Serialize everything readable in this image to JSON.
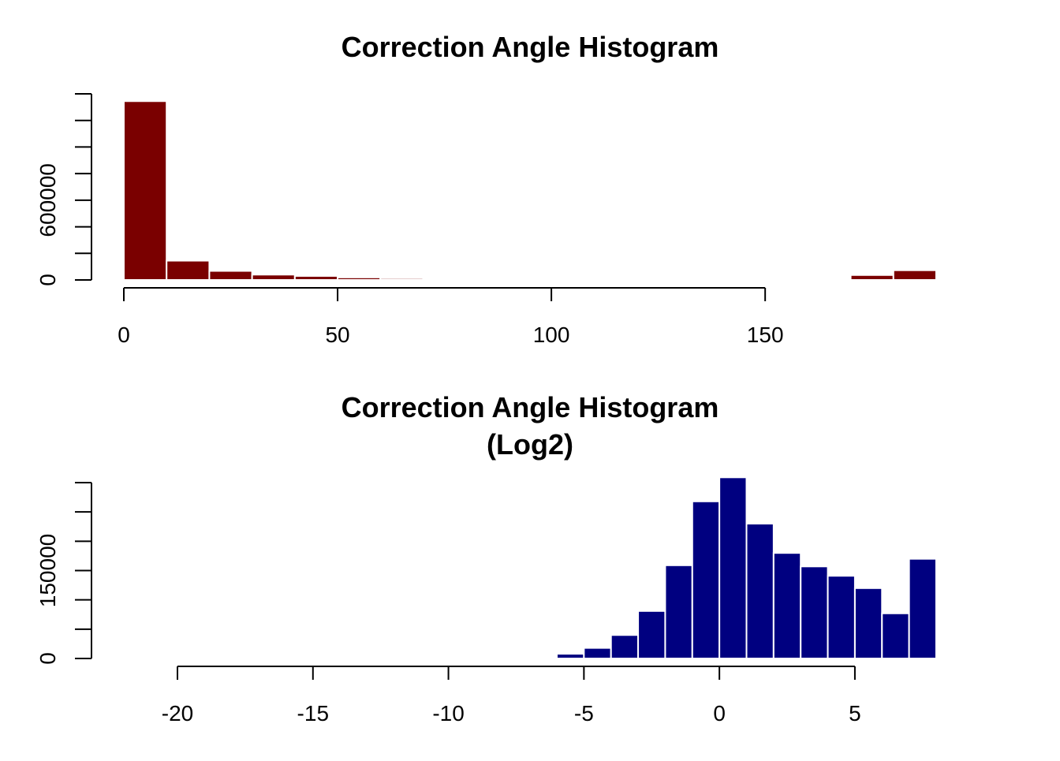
{
  "chart_data": [
    {
      "type": "bar",
      "title": "Correction Angle Histogram",
      "xlabel": "",
      "ylabel": "",
      "bar_color": "#7a0000",
      "bin_edges": [
        0,
        10,
        20,
        30,
        40,
        50,
        60,
        70,
        80,
        90,
        100,
        110,
        120,
        130,
        140,
        150,
        160,
        170,
        180,
        190
      ],
      "values": [
        1345000,
        145000,
        68000,
        40000,
        30000,
        19000,
        13000,
        8000,
        4000,
        0,
        0,
        0,
        0,
        0,
        0,
        0,
        3000,
        37000,
        73000
      ],
      "xlim": [
        0,
        190
      ],
      "ylim": [
        0,
        1400000
      ],
      "xticks": [
        0,
        50,
        100,
        150
      ],
      "xtick_labels": [
        "0",
        "50",
        "100",
        "150"
      ],
      "yticks": [
        0,
        200000,
        400000,
        600000,
        800000,
        1000000,
        1200000,
        1400000
      ],
      "ytick_labels": [
        "0",
        "",
        "",
        "600000",
        "",
        "",
        "",
        ""
      ],
      "grid": false
    },
    {
      "type": "bar",
      "title": "Correction Angle Histogram",
      "subtitle": "(Log2)",
      "xlabel": "",
      "ylabel": "",
      "bar_color": "#000080",
      "bin_edges": [
        -7,
        -6,
        -5,
        -4,
        -3,
        -2,
        -1,
        0,
        1,
        2,
        3,
        4,
        5,
        6,
        7,
        8
      ],
      "values": [
        2000,
        8000,
        18000,
        40000,
        81000,
        159000,
        268000,
        309000,
        230000,
        180000,
        157000,
        141000,
        120000,
        77000,
        170000
      ],
      "xlim": [
        -20,
        8
      ],
      "ylim": [
        0,
        300000
      ],
      "xticks": [
        -20,
        -15,
        -10,
        -5,
        0,
        5
      ],
      "xtick_labels": [
        "-20",
        "-15",
        "-10",
        "-5",
        "0",
        "5"
      ],
      "yticks": [
        0,
        50000,
        100000,
        150000,
        200000,
        250000,
        300000
      ],
      "ytick_labels": [
        "0",
        "",
        "",
        "150000",
        "",
        "",
        ""
      ],
      "grid": false
    }
  ]
}
